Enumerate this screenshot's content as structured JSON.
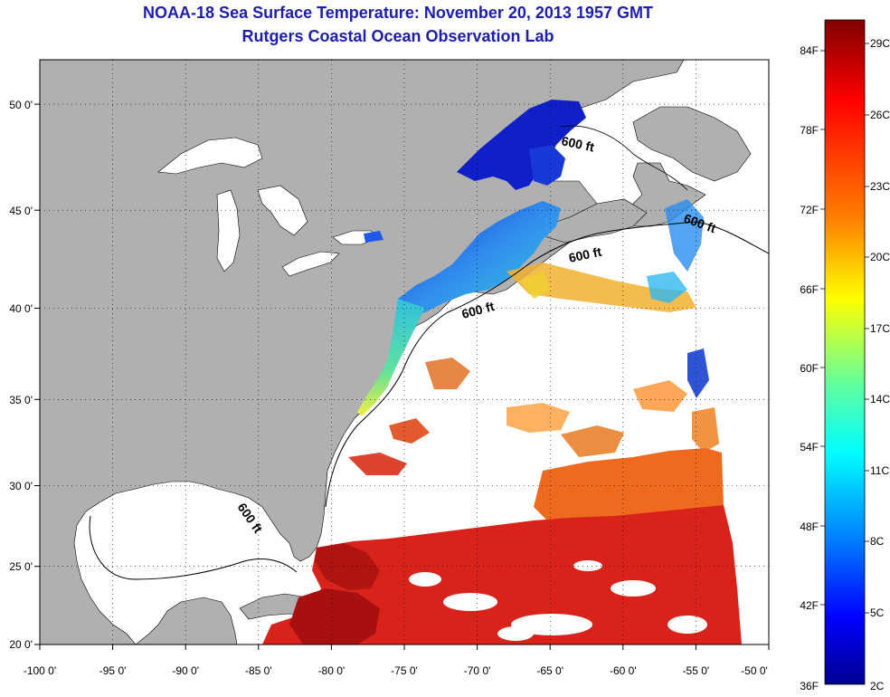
{
  "header": {
    "title": "NOAA-18 Sea Surface Temperature:  November 20, 2013 1957 GMT",
    "subtitle": "Rutgers Coastal Ocean Observation Lab"
  },
  "map": {
    "lon_range": [
      -100,
      -50
    ],
    "lat_range": [
      20,
      52.6
    ],
    "lon_ticks": [
      "-100 0'",
      "-95 0'",
      "-90 0'",
      "-85 0'",
      "-80 0'",
      "-75 0'",
      "-70 0'",
      "-65 0'",
      "-60 0'",
      "-55 0'",
      "-50 0'"
    ],
    "lat_ticks": [
      "20 0'",
      "25 0'",
      "30 0'",
      "35 0'",
      "40 0'",
      "45 0'",
      "50 0'"
    ],
    "contour_label": "600 ft",
    "grid": "dotted",
    "colors": {
      "land": "#b0b0b0",
      "no_data": "#ffffff",
      "warm": "#d81e14",
      "hot": "#a01010",
      "orange": "#f07820",
      "cool": "#2a8cf0",
      "cold": "#1020c8"
    }
  },
  "colorbar": {
    "fahrenheit_labels": [
      "84F",
      "78F",
      "72F",
      "66F",
      "60F",
      "54F",
      "48F",
      "42F",
      "36F"
    ],
    "celsius_labels": [
      "29C",
      "26C",
      "23C",
      "20C",
      "17C",
      "14C",
      "11C",
      "8C",
      "5C",
      "2C"
    ],
    "gradient": [
      "#800000",
      "#ff0000",
      "#ff8000",
      "#ffff00",
      "#80ff80",
      "#00ffff",
      "#0080ff",
      "#0000ff",
      "#000090"
    ]
  }
}
